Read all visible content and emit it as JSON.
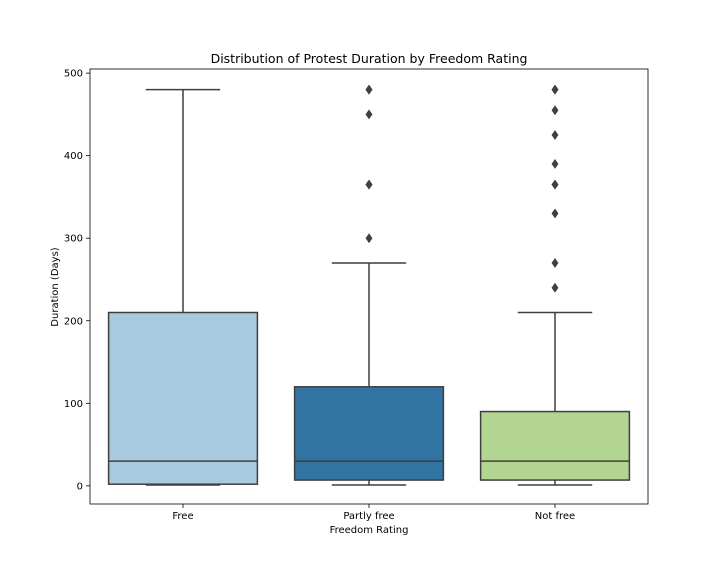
{
  "chart_data": {
    "type": "box",
    "title": "Distribution of Protest Duration by Freedom Rating",
    "xlabel": "Freedom Rating",
    "ylabel": "Duration (Days)",
    "ylim": [
      -22,
      505
    ],
    "yticks": [
      0,
      100,
      200,
      300,
      400,
      500
    ],
    "categories": [
      "Free",
      "Partly free",
      "Not free"
    ],
    "colors": [
      "#a9c9de",
      "#3174a1",
      "#b2d691"
    ],
    "boxes": [
      {
        "category": "Free",
        "whisker_low": 1,
        "q1": 2,
        "median": 30,
        "q3": 210,
        "whisker_high": 480,
        "outliers": []
      },
      {
        "category": "Partly free",
        "whisker_low": 1,
        "q1": 7,
        "median": 30,
        "q3": 120,
        "whisker_high": 270,
        "outliers": [
          300,
          365,
          365,
          450,
          480,
          480
        ]
      },
      {
        "category": "Not free",
        "whisker_low": 1,
        "q1": 7,
        "median": 30,
        "q3": 90,
        "whisker_high": 210,
        "outliers": [
          240,
          270,
          330,
          365,
          365,
          390,
          425,
          455,
          480,
          480
        ]
      }
    ]
  }
}
